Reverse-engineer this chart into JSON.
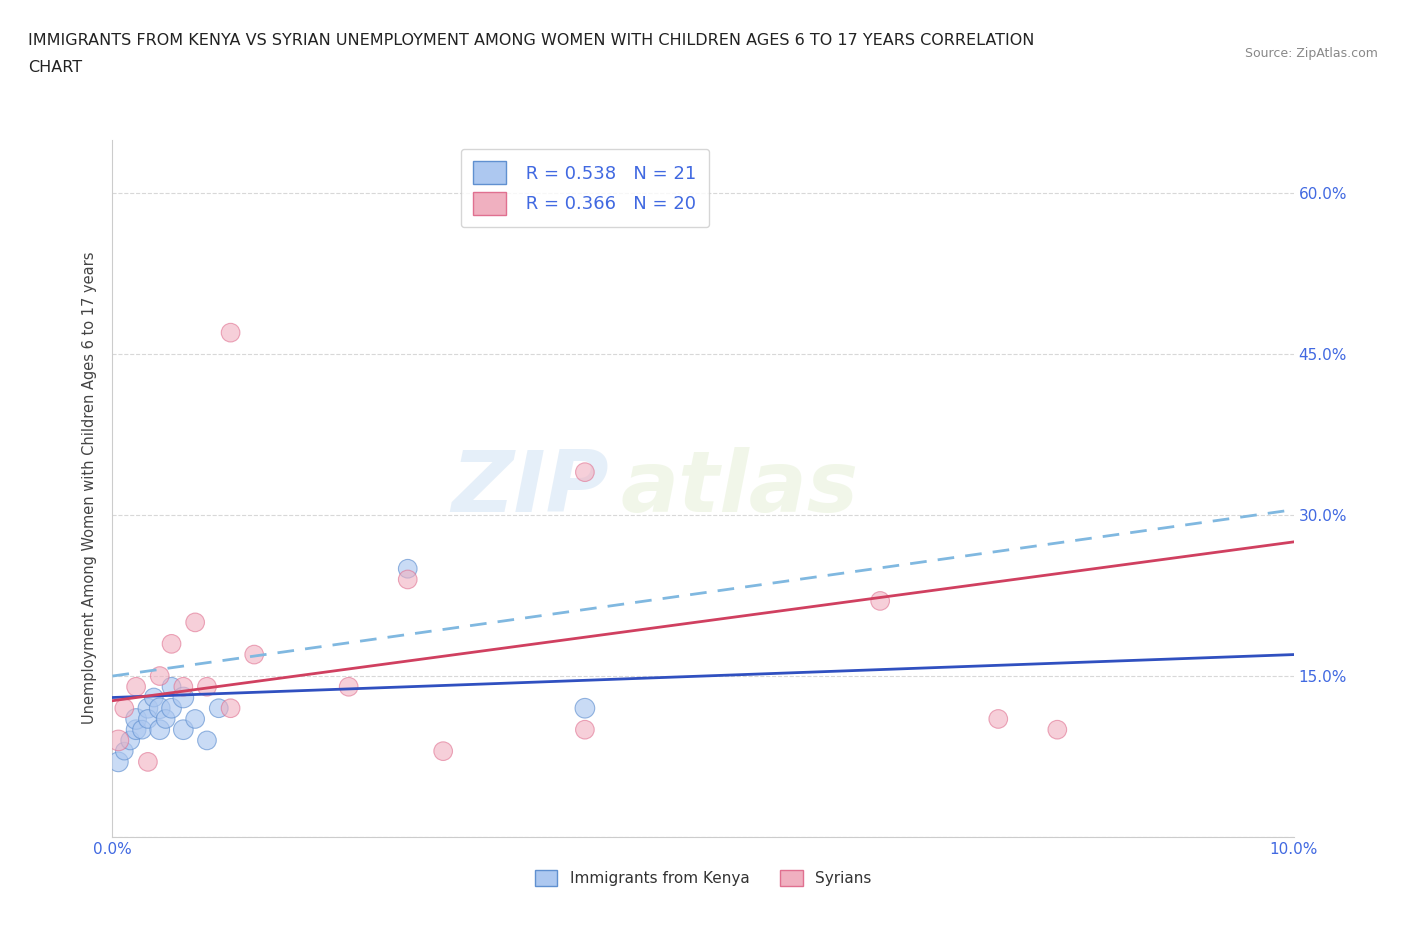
{
  "title_line1": "IMMIGRANTS FROM KENYA VS SYRIAN UNEMPLOYMENT AMONG WOMEN WITH CHILDREN AGES 6 TO 17 YEARS CORRELATION",
  "title_line2": "CHART",
  "source": "Source: ZipAtlas.com",
  "ylabel": "Unemployment Among Women with Children Ages 6 to 17 years",
  "legend_1_label": "Immigrants from Kenya",
  "legend_2_label": "Syrians",
  "R1": 0.538,
  "N1": 21,
  "R2": 0.366,
  "N2": 20,
  "xlim": [
    0.0,
    0.1
  ],
  "ylim": [
    0.0,
    0.65
  ],
  "yticks": [
    0.0,
    0.15,
    0.3,
    0.45,
    0.6
  ],
  "ytick_labels_right": [
    "",
    "15.0%",
    "30.0%",
    "45.0%",
    "60.0%"
  ],
  "xticks": [
    0.0,
    0.025,
    0.05,
    0.075,
    0.1
  ],
  "xtick_labels": [
    "0.0%",
    "",
    "",
    "",
    "10.0%"
  ],
  "watermark_zip": "ZIP",
  "watermark_atlas": "atlas",
  "blue_fill": "#adc8f0",
  "blue_edge": "#6090d0",
  "pink_fill": "#f0b0c0",
  "pink_edge": "#e07090",
  "blue_line_color": "#3050c0",
  "pink_line_color": "#d04060",
  "blue_dash_color": "#80b8e0",
  "kenya_x": [
    0.0005,
    0.001,
    0.0015,
    0.002,
    0.002,
    0.0025,
    0.003,
    0.003,
    0.0035,
    0.004,
    0.004,
    0.0045,
    0.005,
    0.005,
    0.006,
    0.006,
    0.007,
    0.008,
    0.009,
    0.025,
    0.04
  ],
  "kenya_y": [
    0.07,
    0.08,
    0.09,
    0.1,
    0.11,
    0.1,
    0.12,
    0.11,
    0.13,
    0.1,
    0.12,
    0.11,
    0.14,
    0.12,
    0.1,
    0.13,
    0.11,
    0.09,
    0.12,
    0.25,
    0.12
  ],
  "kenya_size": [
    200,
    160,
    180,
    200,
    220,
    180,
    200,
    180,
    180,
    200,
    220,
    180,
    180,
    200,
    200,
    220,
    180,
    180,
    180,
    180,
    200
  ],
  "syria_x": [
    0.0005,
    0.001,
    0.002,
    0.003,
    0.004,
    0.005,
    0.006,
    0.007,
    0.008,
    0.01,
    0.01,
    0.012,
    0.02,
    0.025,
    0.028,
    0.04,
    0.04,
    0.065,
    0.075,
    0.08
  ],
  "syria_y": [
    0.09,
    0.12,
    0.14,
    0.07,
    0.15,
    0.18,
    0.14,
    0.2,
    0.14,
    0.12,
    0.47,
    0.17,
    0.14,
    0.24,
    0.08,
    0.1,
    0.34,
    0.22,
    0.11,
    0.1
  ],
  "syria_size": [
    220,
    180,
    180,
    180,
    180,
    180,
    180,
    180,
    180,
    180,
    180,
    180,
    180,
    180,
    180,
    180,
    180,
    180,
    180,
    180
  ],
  "background_color": "#ffffff",
  "grid_color": "#d8d8d8",
  "axis_color": "#cccccc",
  "tick_color": "#4169e1",
  "blue_line_y0": 0.13,
  "blue_line_y1": 0.17,
  "pink_line_y0": 0.127,
  "pink_line_y1": 0.275,
  "dash_line_y0": 0.15,
  "dash_line_y1": 0.305
}
